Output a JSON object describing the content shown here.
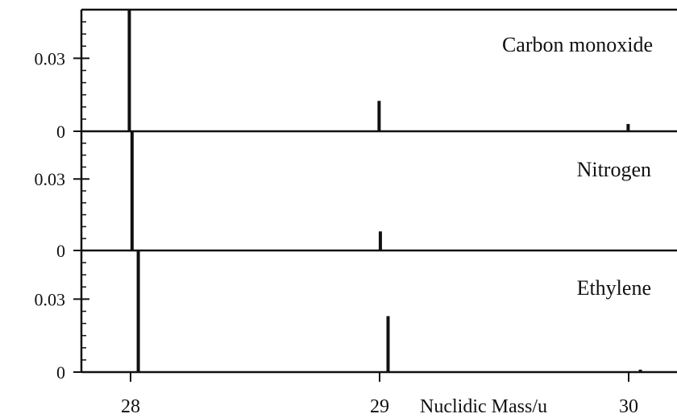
{
  "chart_data": {
    "type": "bar",
    "x_axis": {
      "label": "Nuclidic Mass/u",
      "ticks": [
        28,
        29,
        30
      ],
      "tick_labels": [
        "28",
        "29",
        "30"
      ],
      "range": [
        27.8,
        30.2
      ]
    },
    "y_axis": {
      "ticks": [
        0,
        0.03
      ],
      "tick_labels": [
        "0",
        "0.03"
      ],
      "range": [
        0,
        0.05
      ]
    },
    "panels": [
      {
        "name": "Carbon monoxide",
        "peaks": [
          {
            "x": 27.995,
            "y": 0.05
          },
          {
            "x": 28.998,
            "y": 0.0125
          },
          {
            "x": 29.998,
            "y": 0.003
          }
        ]
      },
      {
        "name": "Nitrogen",
        "peaks": [
          {
            "x": 28.006,
            "y": 0.05
          },
          {
            "x": 29.003,
            "y": 0.008
          }
        ]
      },
      {
        "name": "Ethylene",
        "peaks": [
          {
            "x": 28.031,
            "y": 0.05
          },
          {
            "x": 29.034,
            "y": 0.023
          },
          {
            "x": 30.047,
            "y": 0.001
          }
        ]
      }
    ]
  }
}
